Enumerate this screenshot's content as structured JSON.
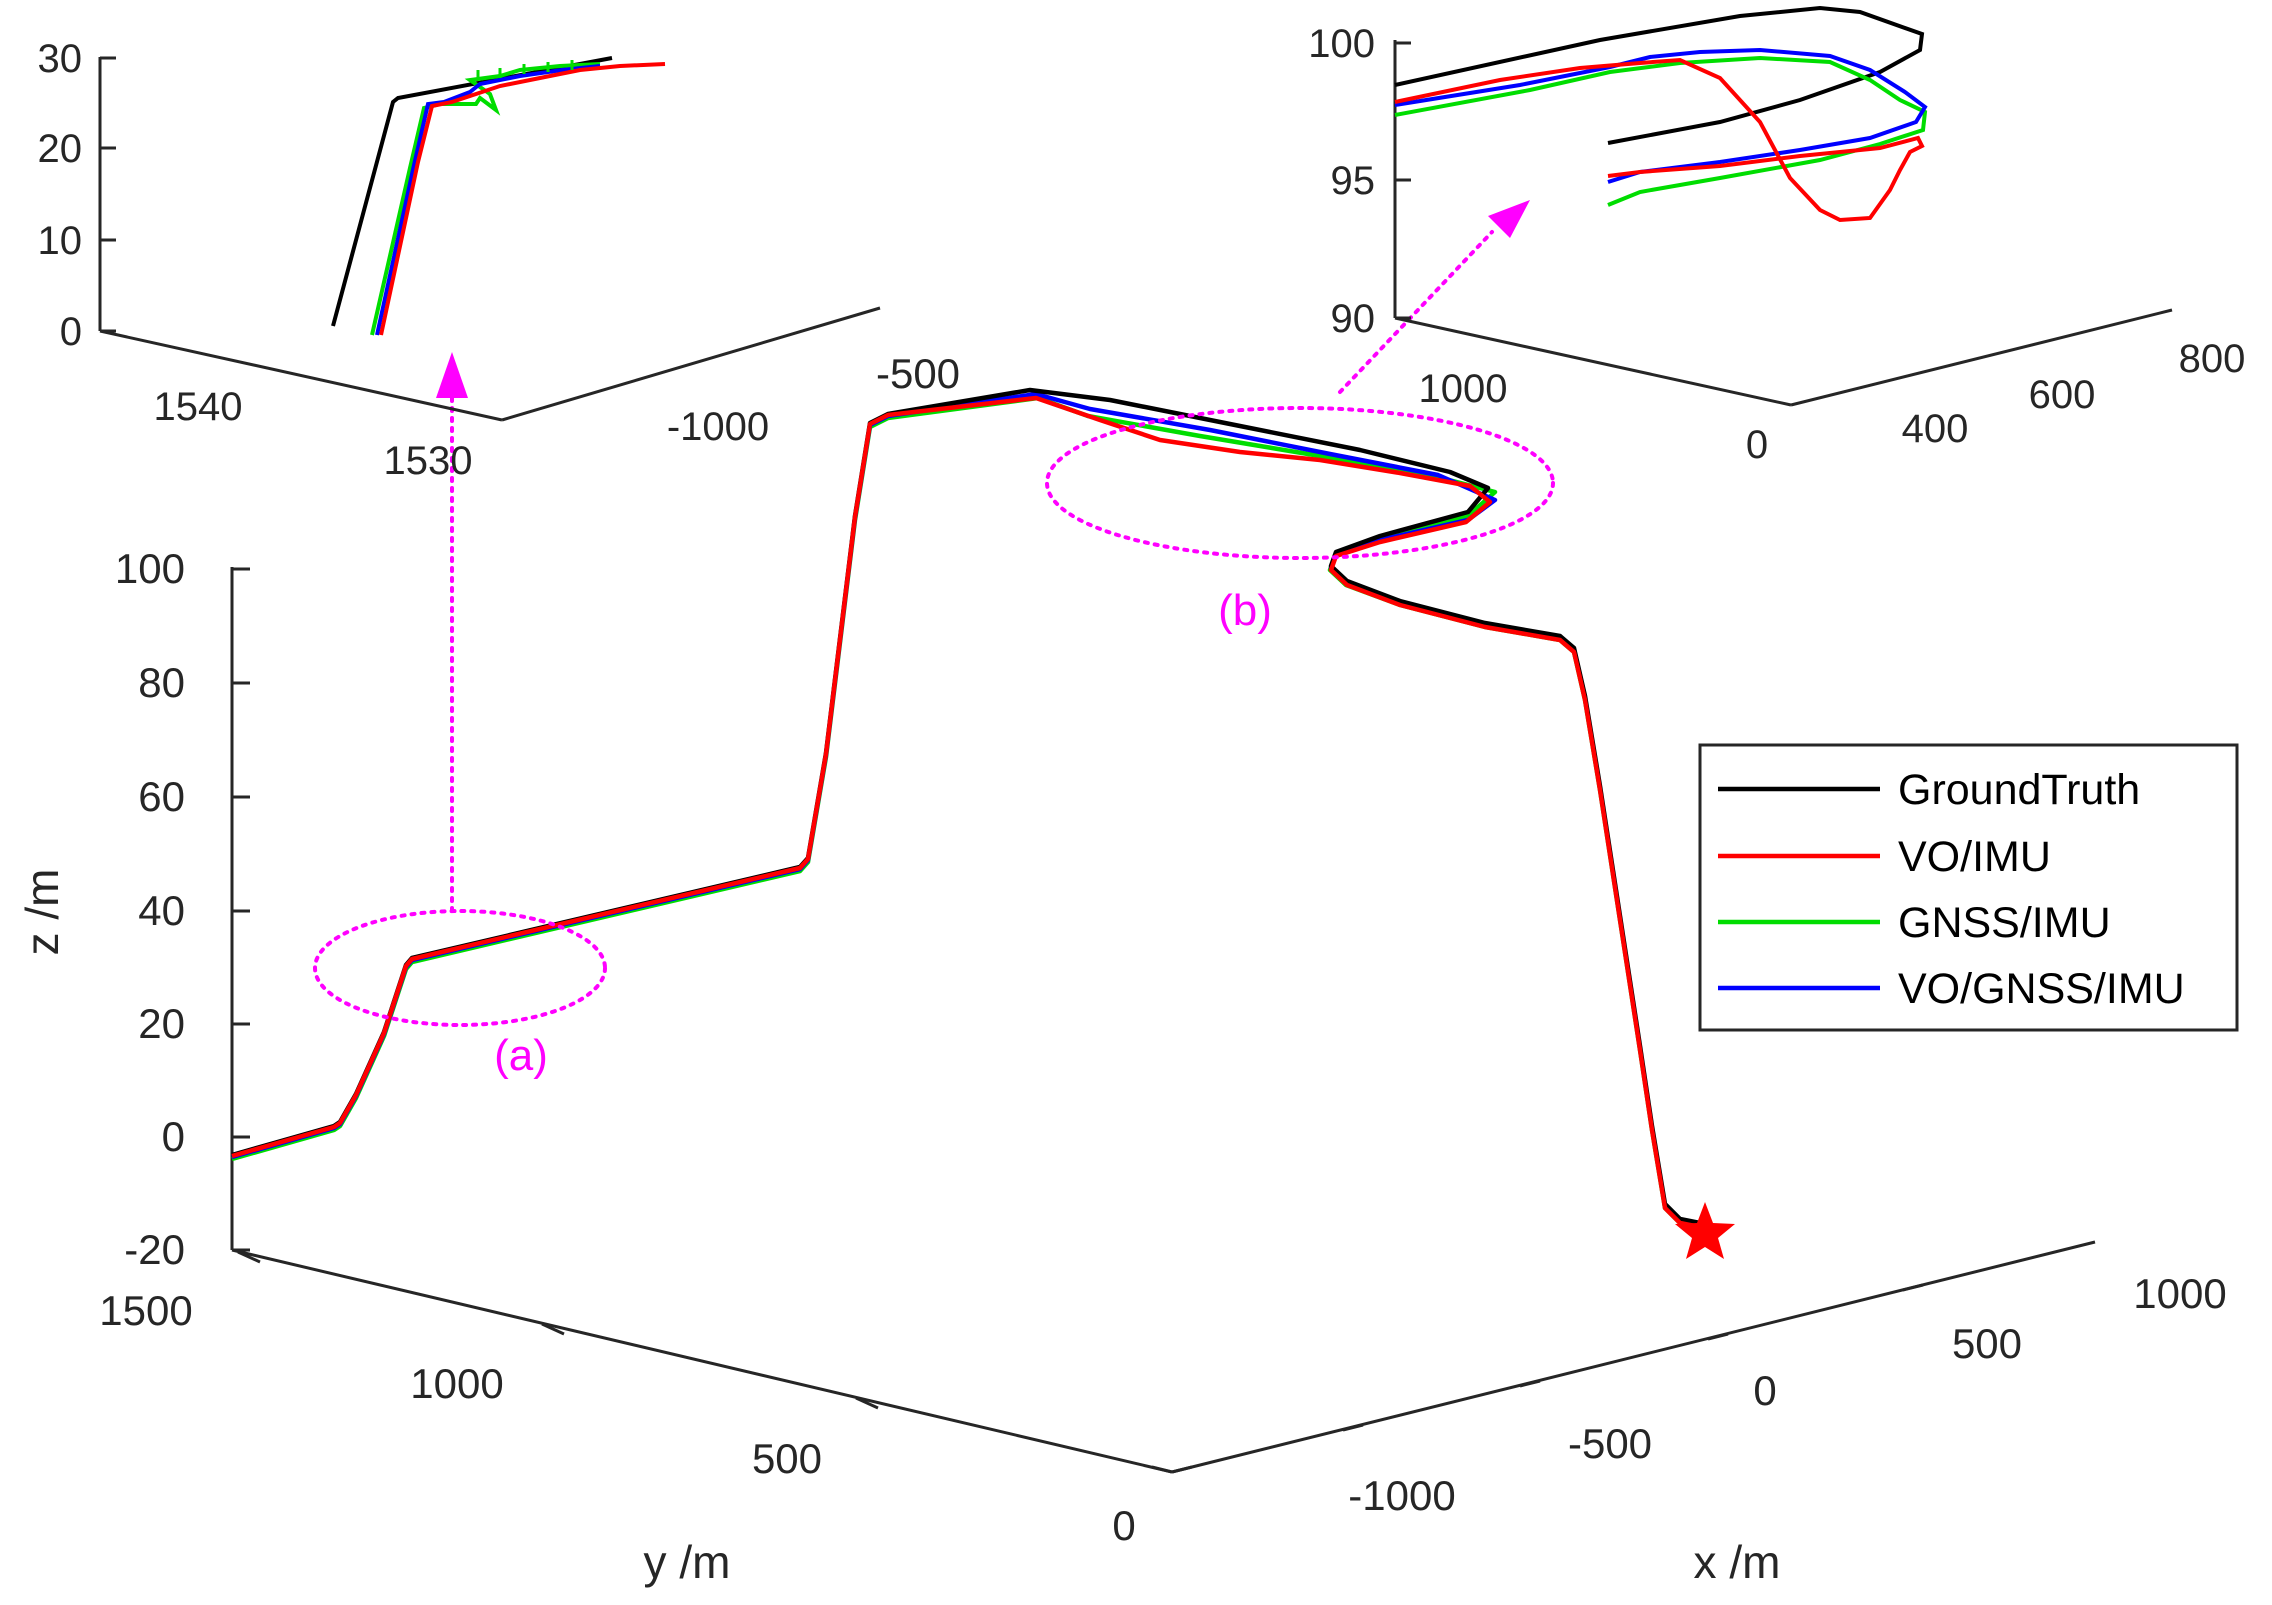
{
  "colors": {
    "ground_truth": "#000000",
    "vo_imu": "#ff0000",
    "gnss_imu": "#00dd00",
    "vo_gnss_imu": "#0000ff",
    "annotation": "#ff00ff",
    "axis": "#262626"
  },
  "chart_data": [
    {
      "id": "main",
      "type": "line",
      "projection": "3d",
      "title": "",
      "xlabel": "x /m",
      "ylabel": "y /m",
      "zlabel": "z /m",
      "xlim": [
        -1000,
        1000
      ],
      "ylim": [
        0,
        1500
      ],
      "zlim": [
        -20,
        100
      ],
      "x_ticks": [
        "-1000",
        "-500",
        "0",
        "500",
        "1000"
      ],
      "y_ticks": [
        "0",
        "500",
        "1000",
        "1500"
      ],
      "z_ticks": [
        "-20",
        "0",
        "20",
        "40",
        "60",
        "80",
        "100"
      ],
      "top_tick_label": "-500",
      "legend": {
        "position": "right",
        "entries": [
          "GroundTruth",
          "VO/IMU",
          "GNSS/IMU",
          "VO/GNSS/IMU"
        ]
      },
      "end_marker": "star",
      "annotations": [
        "(a)",
        "(b)"
      ],
      "series": [
        {
          "name": "GroundTruth",
          "description": "reference trajectory, z from about -3 m at y=1500 rising in steps to about 100 m, then descending to about -15 m near x=0"
        },
        {
          "name": "VO/IMU",
          "description": "close to GroundTruth, with visible drift in region (b)"
        },
        {
          "name": "GNSS/IMU",
          "description": "close to GroundTruth"
        },
        {
          "name": "VO/GNSS/IMU",
          "description": "close to GroundTruth"
        }
      ]
    },
    {
      "id": "inset_a",
      "type": "line",
      "projection": "3d",
      "zlim": [
        0,
        30
      ],
      "z_ticks": [
        "0",
        "10",
        "20",
        "30"
      ],
      "y_ticks": [
        "1540",
        "1530"
      ],
      "x_ticks": [
        "-1000"
      ]
    },
    {
      "id": "inset_b",
      "type": "line",
      "projection": "3d",
      "zlim": [
        90,
        100
      ],
      "z_ticks": [
        "90",
        "95",
        "100"
      ],
      "y_ticks": [
        "1000",
        "0"
      ],
      "x_ticks": [
        "400",
        "600",
        "800"
      ]
    }
  ]
}
